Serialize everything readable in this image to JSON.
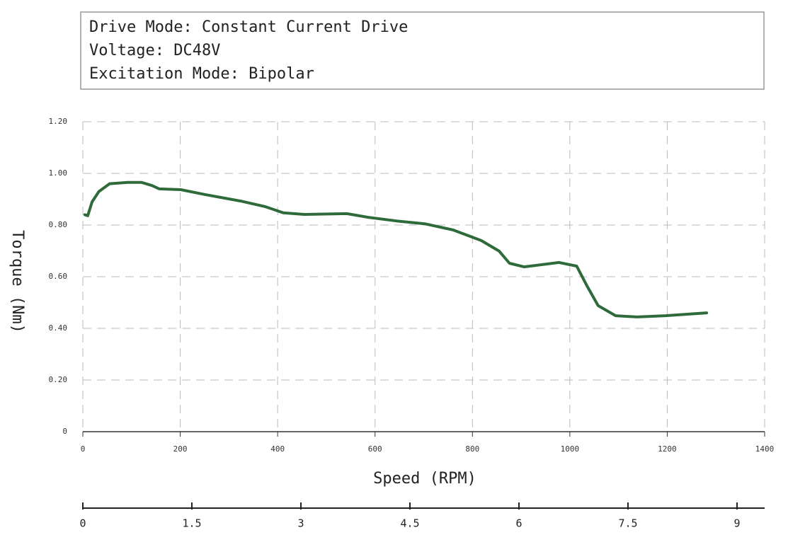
{
  "chart_data": {
    "type": "line",
    "annotations": [
      "Drive Mode: Constant Current Drive",
      "Voltage: DC48V",
      "Excitation Mode: Bipolar"
    ],
    "xlabel": "Speed (RPM)",
    "ylabel": "Torque (Nm)",
    "x": [
      4,
      10,
      19,
      33,
      55,
      92,
      121,
      142,
      157,
      201,
      251,
      324,
      375,
      412,
      455,
      542,
      586,
      644,
      702,
      760,
      818,
      855,
      876,
      906,
      978,
      1014,
      1036,
      1058,
      1094,
      1138,
      1196,
      1281
    ],
    "values": [
      0.84,
      0.836,
      0.89,
      0.93,
      0.96,
      0.965,
      0.965,
      0.953,
      0.94,
      0.937,
      0.918,
      0.893,
      0.871,
      0.847,
      0.841,
      0.844,
      0.83,
      0.816,
      0.805,
      0.781,
      0.74,
      0.699,
      0.652,
      0.638,
      0.655,
      0.641,
      0.562,
      0.488,
      0.449,
      0.444,
      0.449,
      0.46
    ],
    "color": "#2f6b3a",
    "xlim": [
      0,
      1400
    ],
    "xticks": [
      0,
      200,
      400,
      600,
      800,
      1000,
      1200,
      1400
    ],
    "ylim": [
      0,
      1.2
    ],
    "yticks": [
      0,
      {
        "value": 0.2,
        "label": "0.20"
      },
      {
        "value": 0.4,
        "label": "0.40"
      },
      {
        "value": 0.6,
        "label": "0.60"
      },
      {
        "value": 0.8,
        "label": "0.80"
      },
      {
        "value": 1.0,
        "label": "1.00"
      },
      {
        "value": 1.2,
        "label": "1.20"
      }
    ],
    "x2lim": [
      0,
      9.38
    ],
    "x2ticks": [
      0,
      1.5,
      3,
      4.5,
      6,
      7.5,
      9
    ],
    "grid": true
  }
}
